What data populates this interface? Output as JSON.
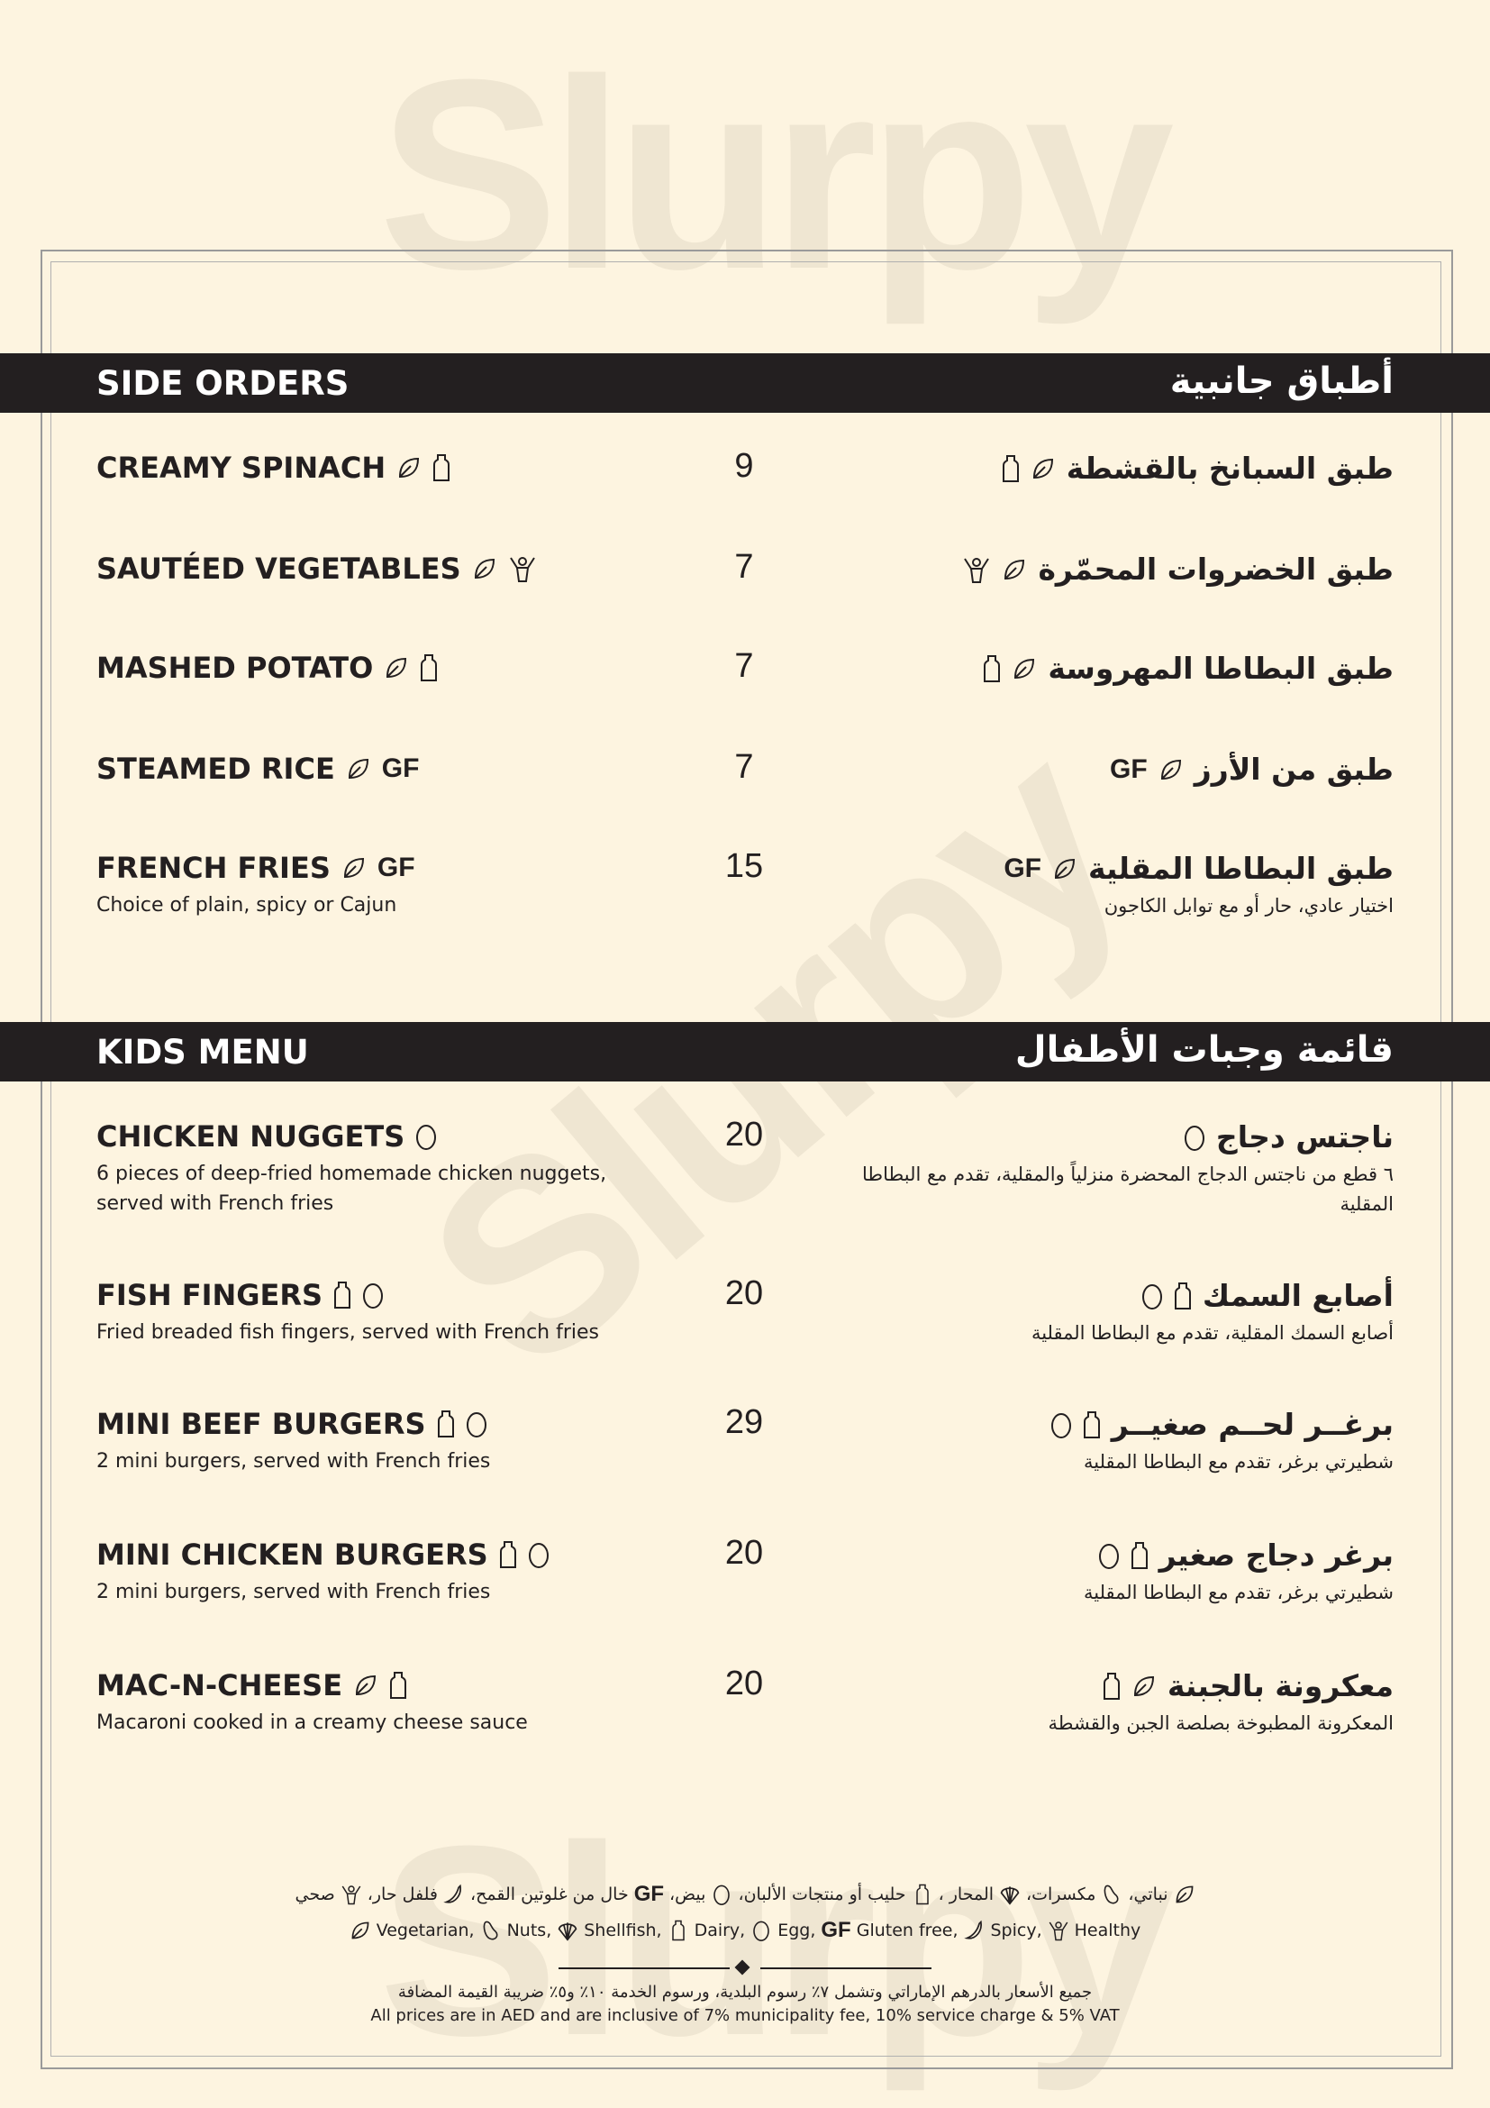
{
  "watermark": "Slurpy",
  "sections": [
    {
      "title_en": "SIDE ORDERS",
      "title_ar": "أطباق جانبية",
      "items": [
        {
          "name_en": "CREAMY SPINACH",
          "name_ar": "طبق السبانخ بالقشطة",
          "price": "9",
          "icons": [
            "leaf",
            "bottle"
          ],
          "desc_en": "",
          "desc_ar": ""
        },
        {
          "name_en": "SAUTÉED VEGETABLES",
          "name_ar": "طبق الخضروات  المحمّرة",
          "price": "7",
          "icons": [
            "leaf",
            "healthy"
          ],
          "desc_en": "",
          "desc_ar": ""
        },
        {
          "name_en": "MASHED POTATO",
          "name_ar": "طبق البطاطا المهروسة",
          "price": "7",
          "icons": [
            "leaf",
            "bottle"
          ],
          "desc_en": "",
          "desc_ar": ""
        },
        {
          "name_en": "STEAMED RICE",
          "name_ar": "طبق من الأرز",
          "price": "7",
          "icons": [
            "leaf",
            "gf"
          ],
          "desc_en": "",
          "desc_ar": ""
        },
        {
          "name_en": "FRENCH FRIES",
          "name_ar": "طبق البطاطا المقلية",
          "price": "15",
          "icons": [
            "leaf",
            "gf"
          ],
          "desc_en": "Choice of plain, spicy or Cajun",
          "desc_ar": "اختيار عادي، حار أو مع توابل الكاجون"
        }
      ]
    },
    {
      "title_en": "KIDS MENU",
      "title_ar": "قائمة وجبات الأطفال",
      "items": [
        {
          "name_en": "CHICKEN NUGGETS",
          "name_ar": "ناجتس دجاج",
          "price": "20",
          "icons": [
            "egg"
          ],
          "desc_en": "6 pieces of deep-fried homemade chicken nuggets, served with French fries",
          "desc_ar": "٦ قطع من ناجتس الدجاج المحضرة منزلياً والمقلية، تقدم مع البطاطا المقلية"
        },
        {
          "name_en": "FISH FINGERS",
          "name_ar": "أصابع السمك",
          "price": "20",
          "icons": [
            "bottle",
            "egg"
          ],
          "desc_en": "Fried breaded fish fingers, served with French fries",
          "desc_ar": "أصابع السمك المقلية، تقدم مع البطاطا المقلية"
        },
        {
          "name_en": "MINI BEEF BURGERS",
          "name_ar": "برغــر لحــم صغيــر",
          "price": "29",
          "icons": [
            "bottle",
            "egg"
          ],
          "desc_en": "2 mini burgers, served with French fries",
          "desc_ar": "شطيرتي برغر، تقدم مع البطاطا المقلية"
        },
        {
          "name_en": "MINI CHICKEN BURGERS",
          "name_ar": "برغر دجاج صغير",
          "price": "20",
          "icons": [
            "bottle",
            "egg"
          ],
          "desc_en": "2 mini burgers, served with French fries",
          "desc_ar": "شطيرتي برغر، تقدم مع البطاطا المقلية"
        },
        {
          "name_en": "MAC-N-CHEESE",
          "name_ar": "معكرونة بالجبنة",
          "price": "20",
          "icons": [
            "leaf",
            "bottle"
          ],
          "desc_en": "Macaroni cooked in a creamy cheese sauce",
          "desc_ar": "المعكرونة المطبوخة بصلصة الجبن والقشطة"
        }
      ]
    }
  ],
  "legend": {
    "ar": [
      {
        "icon": "leaf",
        "label": "نباتي،"
      },
      {
        "icon": "nuts",
        "label": "مكسرات،"
      },
      {
        "icon": "shell",
        "label": "المحار ،"
      },
      {
        "icon": "bottle",
        "label": "حليب أو منتجات الألبان،"
      },
      {
        "icon": "egg",
        "label": "بيض،"
      },
      {
        "icon": "gf",
        "label": "خال من غلوتين القمح،"
      },
      {
        "icon": "spicy",
        "label": "فلفل حار،"
      },
      {
        "icon": "healthy",
        "label": "صحي"
      }
    ],
    "en": [
      {
        "icon": "leaf",
        "label": "Vegetarian,"
      },
      {
        "icon": "nuts",
        "label": "Nuts,"
      },
      {
        "icon": "shell",
        "label": "Shellfish,"
      },
      {
        "icon": "bottle",
        "label": "Dairy,"
      },
      {
        "icon": "egg",
        "label": "Egg,"
      },
      {
        "icon": "gf",
        "label": "Gluten free,"
      },
      {
        "icon": "spicy",
        "label": "Spicy,"
      },
      {
        "icon": "healthy",
        "label": "Healthy"
      }
    ]
  },
  "gf_label": "GF",
  "footer": {
    "note_ar": "جميع الأسعار بالدرهم الإماراتي وتشمل ٧٪ رسوم البلدية، ورسوم الخدمة ١٠٪ و٥٪ ضريبة القيمة المضافة",
    "note_en": "All prices are in AED and are inclusive of 7% municipality fee, 10% service charge & 5% VAT"
  }
}
